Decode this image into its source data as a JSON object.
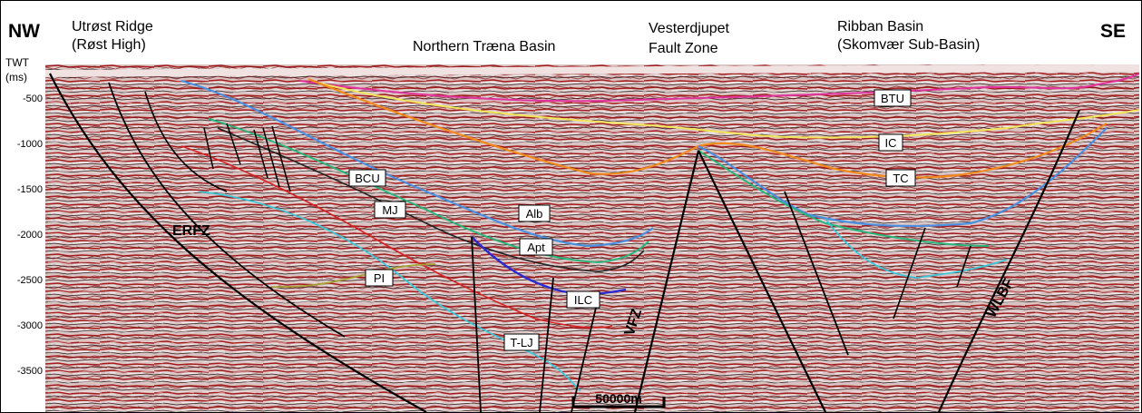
{
  "figure": {
    "direction_left": "NW",
    "direction_right": "SE",
    "axis_unit_line1": "TWT",
    "axis_unit_line2": "(ms)",
    "regions": [
      {
        "line1": "Utrøst Ridge",
        "line2": "(Røst High)"
      },
      {
        "line1": "Northern Træna Basin",
        "line2": ""
      },
      {
        "line1": "Vesterdjupet",
        "line2": "Fault Zone"
      },
      {
        "line1": "Ribban Basin",
        "line2": "(Skomvær Sub-Basin)"
      }
    ],
    "twt_ticks": [
      "-500",
      "-1000",
      "-1500",
      "-2000",
      "-2500",
      "-3000",
      "-3500"
    ],
    "horizons": [
      {
        "label": "BTU",
        "color": "#e0339f"
      },
      {
        "label": "IC",
        "color": "#f2e65a"
      },
      {
        "label": "TC",
        "color": "#f08a1c"
      },
      {
        "label": "BCU",
        "color": "#222222"
      },
      {
        "label": "Alb",
        "color": "#4a8fe0"
      },
      {
        "label": "Apt",
        "color": "#2ab37a"
      },
      {
        "label": "ILC",
        "color": "#2a2ad0"
      },
      {
        "label": "MJ",
        "color": "#d42020"
      },
      {
        "label": "T-LJ",
        "color": "#3cc6d8"
      },
      {
        "label": "PI",
        "color": "#a7a233"
      }
    ],
    "faults": [
      "ERFZ",
      "VFZ",
      "WLBF"
    ],
    "scale_bar": "50000m"
  }
}
